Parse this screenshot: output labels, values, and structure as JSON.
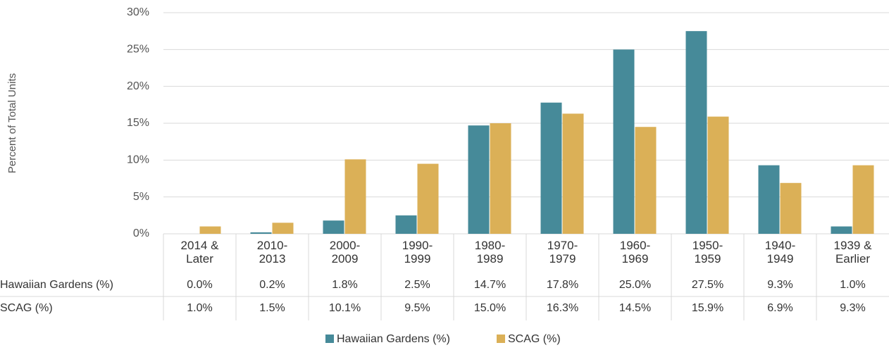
{
  "chart_data": {
    "type": "bar",
    "y_label": "Percent of Total Units",
    "categories": [
      "2014 &\nLater",
      "2010-\n2013",
      "2000-\n2009",
      "1990-\n1999",
      "1980-\n1989",
      "1970-\n1979",
      "1960-\n1969",
      "1950-\n1959",
      "1940-\n1949",
      "1939 &\nEarlier"
    ],
    "series": [
      {
        "name": "Hawaiian Gardens (%)",
        "color": "#468a99",
        "values": [
          0.0,
          0.2,
          1.8,
          2.5,
          14.7,
          17.8,
          25.0,
          27.5,
          9.3,
          1.0
        ],
        "value_labels": [
          "0.0%",
          "0.2%",
          "1.8%",
          "2.5%",
          "14.7%",
          "17.8%",
          "25.0%",
          "27.5%",
          "9.3%",
          "1.0%"
        ]
      },
      {
        "name": "SCAG (%)",
        "color": "#dbb057",
        "values": [
          1.0,
          1.5,
          10.1,
          9.5,
          15.0,
          16.3,
          14.5,
          15.9,
          6.9,
          9.3
        ],
        "value_labels": [
          "1.0%",
          "1.5%",
          "10.1%",
          "9.5%",
          "15.0%",
          "16.3%",
          "14.5%",
          "15.9%",
          "6.9%",
          "9.3%"
        ]
      }
    ],
    "ylim": [
      0,
      30
    ],
    "yticks": [
      {
        "value": 0,
        "label": "0%"
      },
      {
        "value": 5,
        "label": "5%"
      },
      {
        "value": 10,
        "label": "10%"
      },
      {
        "value": 15,
        "label": "15%"
      },
      {
        "value": 20,
        "label": "20%"
      },
      {
        "value": 25,
        "label": "25%"
      },
      {
        "value": 30,
        "label": "30%"
      }
    ],
    "grid": true,
    "legend": "bottom"
  }
}
